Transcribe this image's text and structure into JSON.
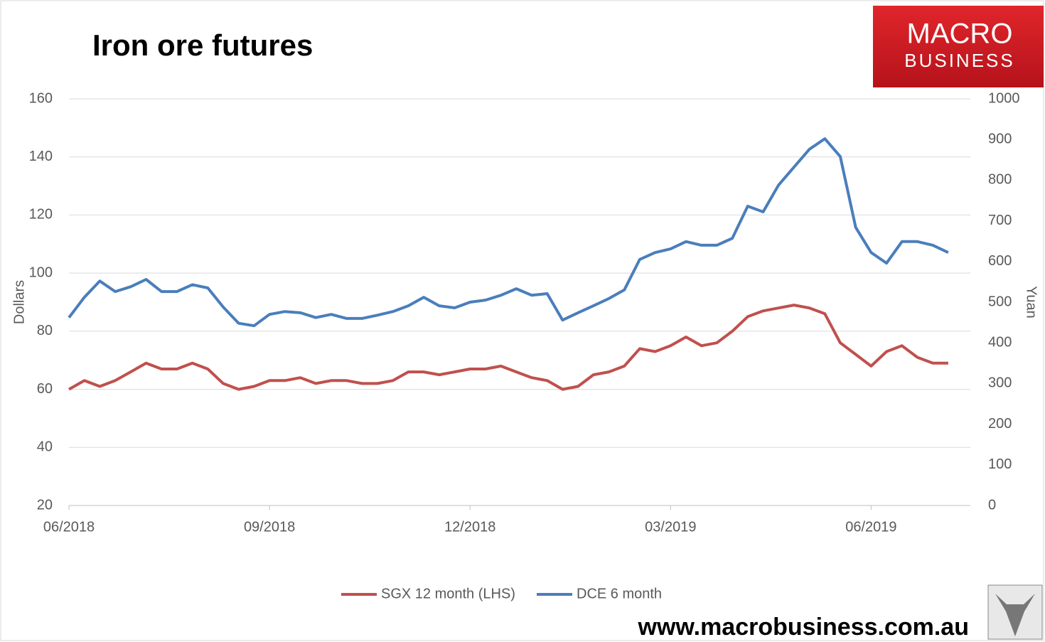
{
  "chart_data": {
    "type": "line",
    "title": "Iron ore futures",
    "y_label": "Dollars",
    "y2_label": "Yuan",
    "categories": [
      "06/2018",
      null,
      null,
      null,
      null,
      null,
      null,
      null,
      null,
      null,
      null,
      null,
      null,
      "09/2018",
      null,
      null,
      null,
      null,
      null,
      null,
      null,
      null,
      null,
      null,
      null,
      null,
      "12/2018",
      null,
      null,
      null,
      null,
      null,
      null,
      null,
      null,
      null,
      null,
      null,
      null,
      "03/2019",
      null,
      null,
      null,
      null,
      null,
      null,
      null,
      null,
      null,
      null,
      null,
      null,
      "06/2019",
      null,
      null,
      null,
      null,
      null
    ],
    "series": [
      {
        "name": "SGX 12 month (LHS)",
        "color": "#c0504d",
        "axis": "y",
        "values": [
          60,
          63,
          61,
          63,
          66,
          69,
          67,
          67,
          69,
          67,
          62,
          60,
          61,
          63,
          63,
          64,
          62,
          63,
          63,
          62,
          62,
          63,
          66,
          66,
          65,
          66,
          67,
          67,
          68,
          66,
          64,
          63,
          60,
          61,
          65,
          66,
          68,
          74,
          73,
          75,
          78,
          75,
          76,
          80,
          85,
          87,
          88,
          89,
          88,
          86,
          76,
          72,
          68,
          73,
          75,
          71,
          69,
          69
        ]
      },
      {
        "name": "DCE 6 month",
        "color": "#4a7ebb",
        "axis": "y2",
        "values": [
          462,
          512,
          552,
          526,
          538,
          556,
          526,
          526,
          543,
          535,
          488,
          448,
          442,
          470,
          477,
          474,
          462,
          470,
          460,
          460,
          468,
          477,
          491,
          512,
          491,
          486,
          500,
          505,
          517,
          533,
          517,
          521,
          456,
          474,
          491,
          509,
          530,
          605,
          622,
          631,
          649,
          640,
          640,
          657,
          736,
          722,
          788,
          832,
          876,
          902,
          858,
          684,
          622,
          596,
          649,
          649,
          640,
          622
        ]
      }
    ],
    "ylim": [
      20,
      160
    ],
    "yticks": [
      20,
      40,
      60,
      80,
      100,
      120,
      140,
      160
    ],
    "y2lim": [
      0,
      1000
    ],
    "y2ticks": [
      0,
      100,
      200,
      300,
      400,
      500,
      600,
      700,
      800,
      900,
      1000
    ],
    "grid": true,
    "legend": "bottom"
  },
  "logo": {
    "line1": "MACRO",
    "line2": "BUSINESS"
  },
  "footer": "www.macrobusiness.com.au"
}
